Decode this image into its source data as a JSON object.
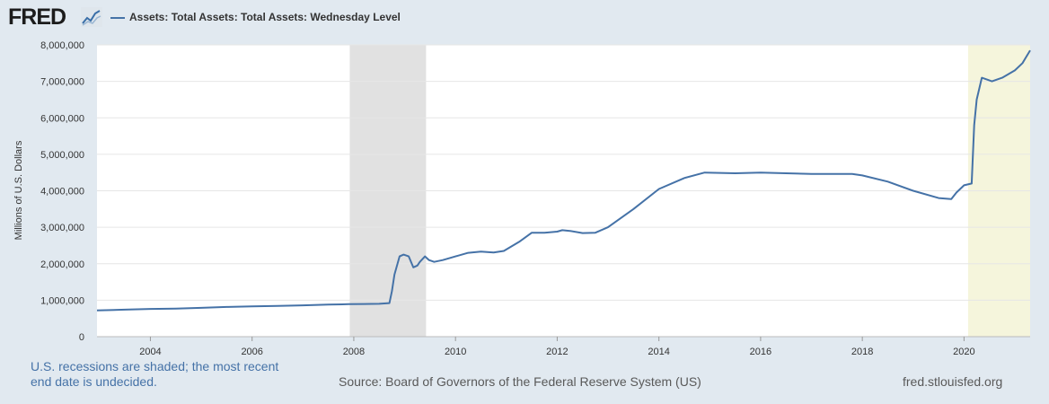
{
  "header": {
    "logo_text": "FRED",
    "logo_icon": "line-chart-icon",
    "legend_label": "Assets: Total Assets: Total Assets: Wednesday Level",
    "series_color": "#4572a7"
  },
  "footer": {
    "recession_note": "U.S. recessions are shaded; the most recent end date is undecided.",
    "source": "Source: Board of Governors of the Federal Reserve System (US)",
    "url": "fred.stlouisfed.org"
  },
  "chart_data": {
    "type": "line",
    "title": "",
    "xlabel": "",
    "ylabel": "Millions of U.S. Dollars",
    "xlim": [
      2002.95,
      2021.3
    ],
    "ylim": [
      0,
      8000000
    ],
    "yticks": [
      0,
      1000000,
      2000000,
      3000000,
      4000000,
      5000000,
      6000000,
      7000000,
      8000000
    ],
    "ytick_labels": [
      "0",
      "1,000,000",
      "2,000,000",
      "3,000,000",
      "4,000,000",
      "5,000,000",
      "6,000,000",
      "7,000,000",
      "8,000,000"
    ],
    "xticks": [
      2004,
      2006,
      2008,
      2010,
      2012,
      2014,
      2016,
      2018,
      2020
    ],
    "xtick_labels": [
      "2004",
      "2006",
      "2008",
      "2010",
      "2012",
      "2014",
      "2016",
      "2018",
      "2020"
    ],
    "grid": "horizontal",
    "recessions": [
      {
        "start": 2007.92,
        "end": 2009.42,
        "color": "#e1e1e1"
      },
      {
        "start": 2020.08,
        "end": 2021.3,
        "color": "#f5f5dc"
      }
    ],
    "series": [
      {
        "name": "Assets: Total Assets: Total Assets: Wednesday Level",
        "color": "#4572a7",
        "x": [
          2002.95,
          2003.5,
          2004.0,
          2004.5,
          2005.0,
          2005.5,
          2006.0,
          2006.5,
          2007.0,
          2007.5,
          2007.9,
          2008.2,
          2008.5,
          2008.7,
          2008.75,
          2008.8,
          2008.9,
          2008.98,
          2009.08,
          2009.17,
          2009.25,
          2009.3,
          2009.4,
          2009.48,
          2009.58,
          2009.75,
          2010.0,
          2010.25,
          2010.5,
          2010.75,
          2010.95,
          2011.25,
          2011.5,
          2011.75,
          2012.0,
          2012.1,
          2012.25,
          2012.5,
          2012.75,
          2013.0,
          2013.5,
          2014.0,
          2014.5,
          2014.9,
          2015.5,
          2016.0,
          2016.5,
          2017.0,
          2017.5,
          2017.8,
          2018.0,
          2018.5,
          2019.0,
          2019.5,
          2019.75,
          2019.85,
          2020.0,
          2020.15,
          2020.2,
          2020.25,
          2020.35,
          2020.45,
          2020.55,
          2020.75,
          2021.0,
          2021.15,
          2021.3
        ],
        "values": [
          720000,
          740000,
          760000,
          770000,
          790000,
          815000,
          830000,
          845000,
          860000,
          880000,
          890000,
          895000,
          900000,
          920000,
          1250000,
          1700000,
          2200000,
          2250000,
          2200000,
          1900000,
          1950000,
          2050000,
          2200000,
          2100000,
          2050000,
          2100000,
          2200000,
          2300000,
          2330000,
          2310000,
          2350000,
          2600000,
          2850000,
          2850000,
          2880000,
          2920000,
          2900000,
          2840000,
          2850000,
          3000000,
          3500000,
          4050000,
          4350000,
          4500000,
          4480000,
          4500000,
          4480000,
          4460000,
          4460000,
          4460000,
          4420000,
          4250000,
          4000000,
          3800000,
          3770000,
          3950000,
          4150000,
          4200000,
          5800000,
          6500000,
          7100000,
          7050000,
          7000000,
          7100000,
          7300000,
          7500000,
          7850000
        ]
      }
    ]
  }
}
